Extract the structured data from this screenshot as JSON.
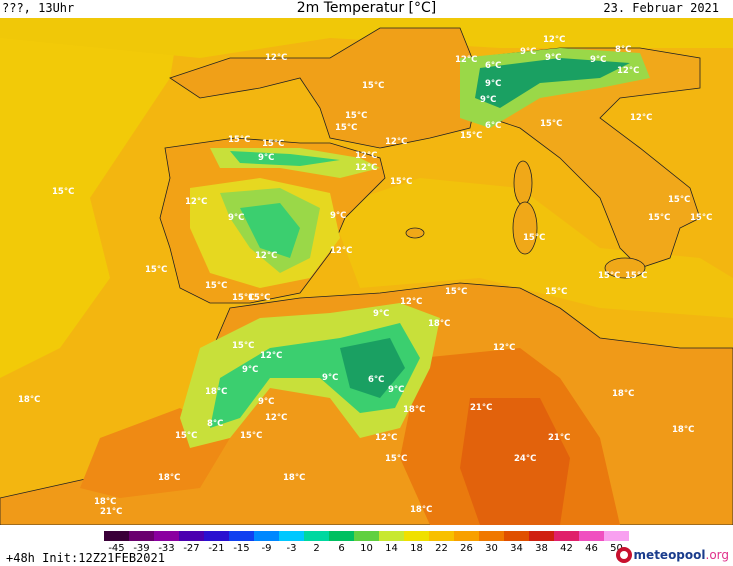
{
  "header": {
    "left": "???, 13Uhr",
    "title": "2m Temperatur [°C]",
    "date": "23. Februar 2021"
  },
  "footer": {
    "init": "+48h Init:12Z21FEB2021",
    "logo_main": "meteopool",
    "logo_suffix": ".org"
  },
  "map_labels": [
    "12°C",
    "12°C",
    "15°C",
    "15°C",
    "9°C",
    "12°C",
    "9°C",
    "9°C",
    "8°C",
    "6°C",
    "12°C",
    "15°C",
    "12°C",
    "15°C",
    "15°C",
    "15°C",
    "15°C",
    "12°C",
    "9°C",
    "9°C",
    "6°C",
    "15°C",
    "12°C",
    "9°C",
    "12°C",
    "15°C",
    "15°C",
    "15°C",
    "9°C",
    "12°C",
    "15°C",
    "12°C",
    "15°C",
    "9°C",
    "12°C",
    "15°C",
    "15°C",
    "15°C",
    "15°C",
    "15°C",
    "12°C",
    "9°C",
    "18°C",
    "15°C",
    "12°C",
    "15°C",
    "12°C",
    "9°C",
    "15°C",
    "9°C",
    "6°C",
    "9°C",
    "18°C",
    "18°C",
    "9°C",
    "18°C",
    "21°C",
    "12°C",
    "18°C",
    "12°C",
    "15°C",
    "8°C",
    "15°C",
    "18°C",
    "15°C",
    "21°C",
    "18°C",
    "18°C",
    "24°C",
    "18°C",
    "21°C",
    "18°C",
    "15°C"
  ],
  "legend": {
    "ticks": [
      "-45",
      "-39",
      "-33",
      "-27",
      "-21",
      "-15",
      "-9",
      "-3",
      "2",
      "6",
      "10",
      "14",
      "18",
      "22",
      "26",
      "30",
      "34",
      "38",
      "42",
      "46",
      "50"
    ],
    "colors": [
      "#3a0038",
      "#6a006e",
      "#8a00a0",
      "#4b00b0",
      "#2a10d0",
      "#1040f0",
      "#0088ff",
      "#00c8ff",
      "#00d8a0",
      "#00c060",
      "#60d040",
      "#c8e830",
      "#f0e000",
      "#f8c000",
      "#f8a000",
      "#f07800",
      "#e05000",
      "#d02010",
      "#e0206a",
      "#f050c0",
      "#f8a0f0"
    ]
  },
  "colors": {
    "sea_warm": "#f5b800",
    "sea_cool": "#f0d000",
    "land_main": "#f3a015",
    "land_hot": "#ea7a0e",
    "highland": "#c8e03a",
    "cold": "#3bcf6f",
    "very_cold": "#1aa062"
  }
}
